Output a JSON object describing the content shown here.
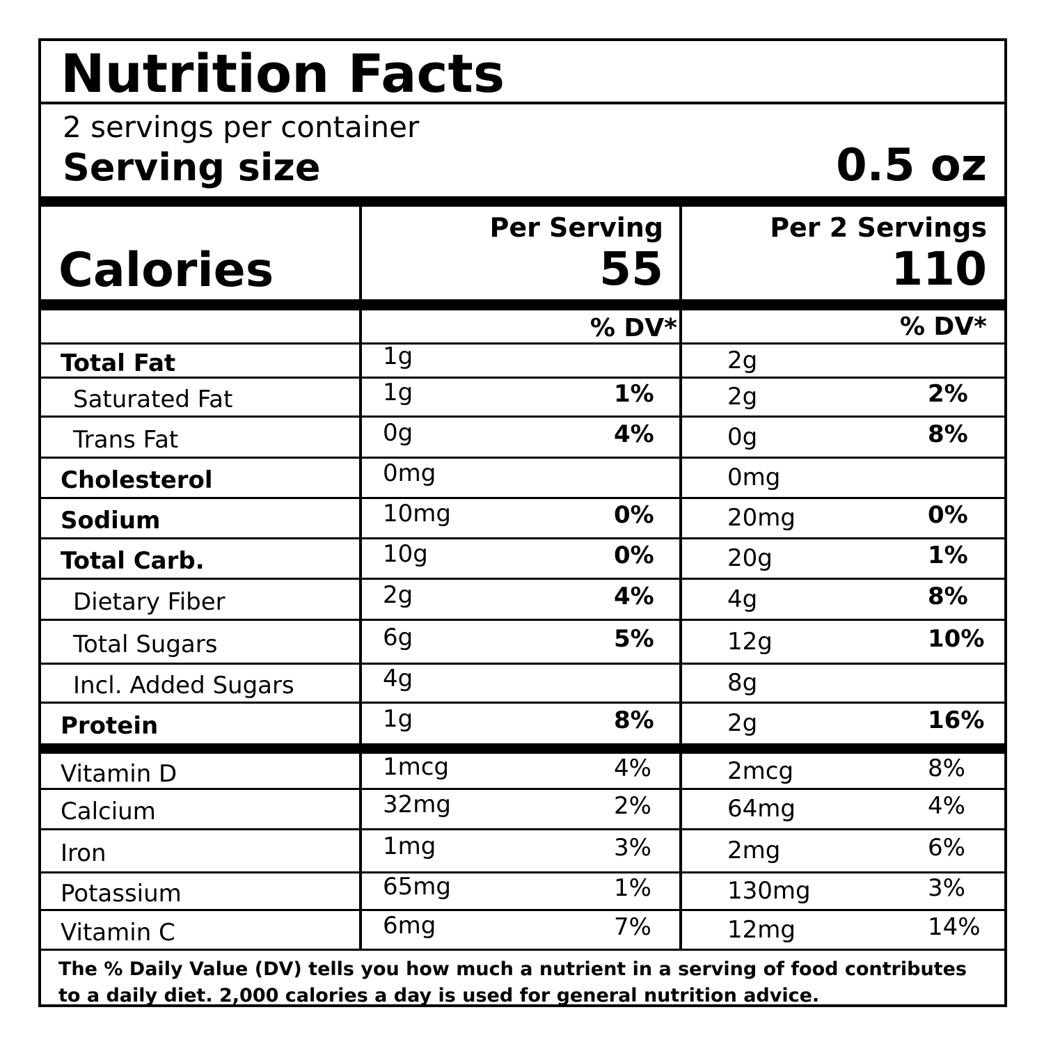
{
  "title": "Nutrition Facts",
  "servings": "2 servings per container",
  "serving_size_label": "Serving size",
  "serving_size": "0.5 oz",
  "calories": {
    "label": "Calories",
    "columns": [
      "Per Serving",
      "Per 2 Servings"
    ],
    "values": [
      "55",
      "110"
    ]
  },
  "dv_header": [
    "% DV*",
    "% DV*"
  ],
  "nutrients": [
    [
      "Total Fat",
      "1g",
      null,
      "2g",
      null
    ],
    [
      "Saturated Fat",
      "1g",
      "1%",
      "2g",
      "2%"
    ],
    [
      "Trans Fat",
      "0g",
      "4%",
      "0g",
      "8%"
    ],
    [
      "Cholesterol",
      "0mg",
      null,
      "0mg",
      null
    ],
    [
      "Sodium",
      "10mg",
      "0%",
      "20mg",
      "0%"
    ],
    [
      "Total Carb.",
      "10g",
      "0%",
      "20g",
      "1%"
    ],
    [
      "Dietary Fiber",
      "2g",
      "4%",
      "4g",
      "8%"
    ],
    [
      "Total Sugars",
      "6g",
      "5%",
      "12g",
      "10%"
    ],
    [
      "Incl. Added Sugars",
      "4g",
      null,
      "8g",
      null
    ],
    [
      "Protein",
      "1g",
      "8%",
      "2g",
      "16%"
    ]
  ],
  "vitamins": [
    [
      "Vitamin D",
      "1mcg",
      "4%",
      "2mcg",
      "8%"
    ],
    [
      "Calcium",
      "32mg",
      "2%",
      "64mg",
      "4%"
    ],
    [
      "Iron",
      "1mg",
      "3%",
      "2mg",
      "6%"
    ],
    [
      "Potassium",
      "65mg",
      "1%",
      "130mg",
      "3%"
    ],
    [
      "Vitamin C",
      "6mg",
      "7%",
      "12mg",
      "14%"
    ]
  ],
  "footnote": "The % Daily Value (DV) tells you how much a nutrient in a serving of food contributes to a daily diet. 2,000 calories a day is used for general nutrition advice."
}
